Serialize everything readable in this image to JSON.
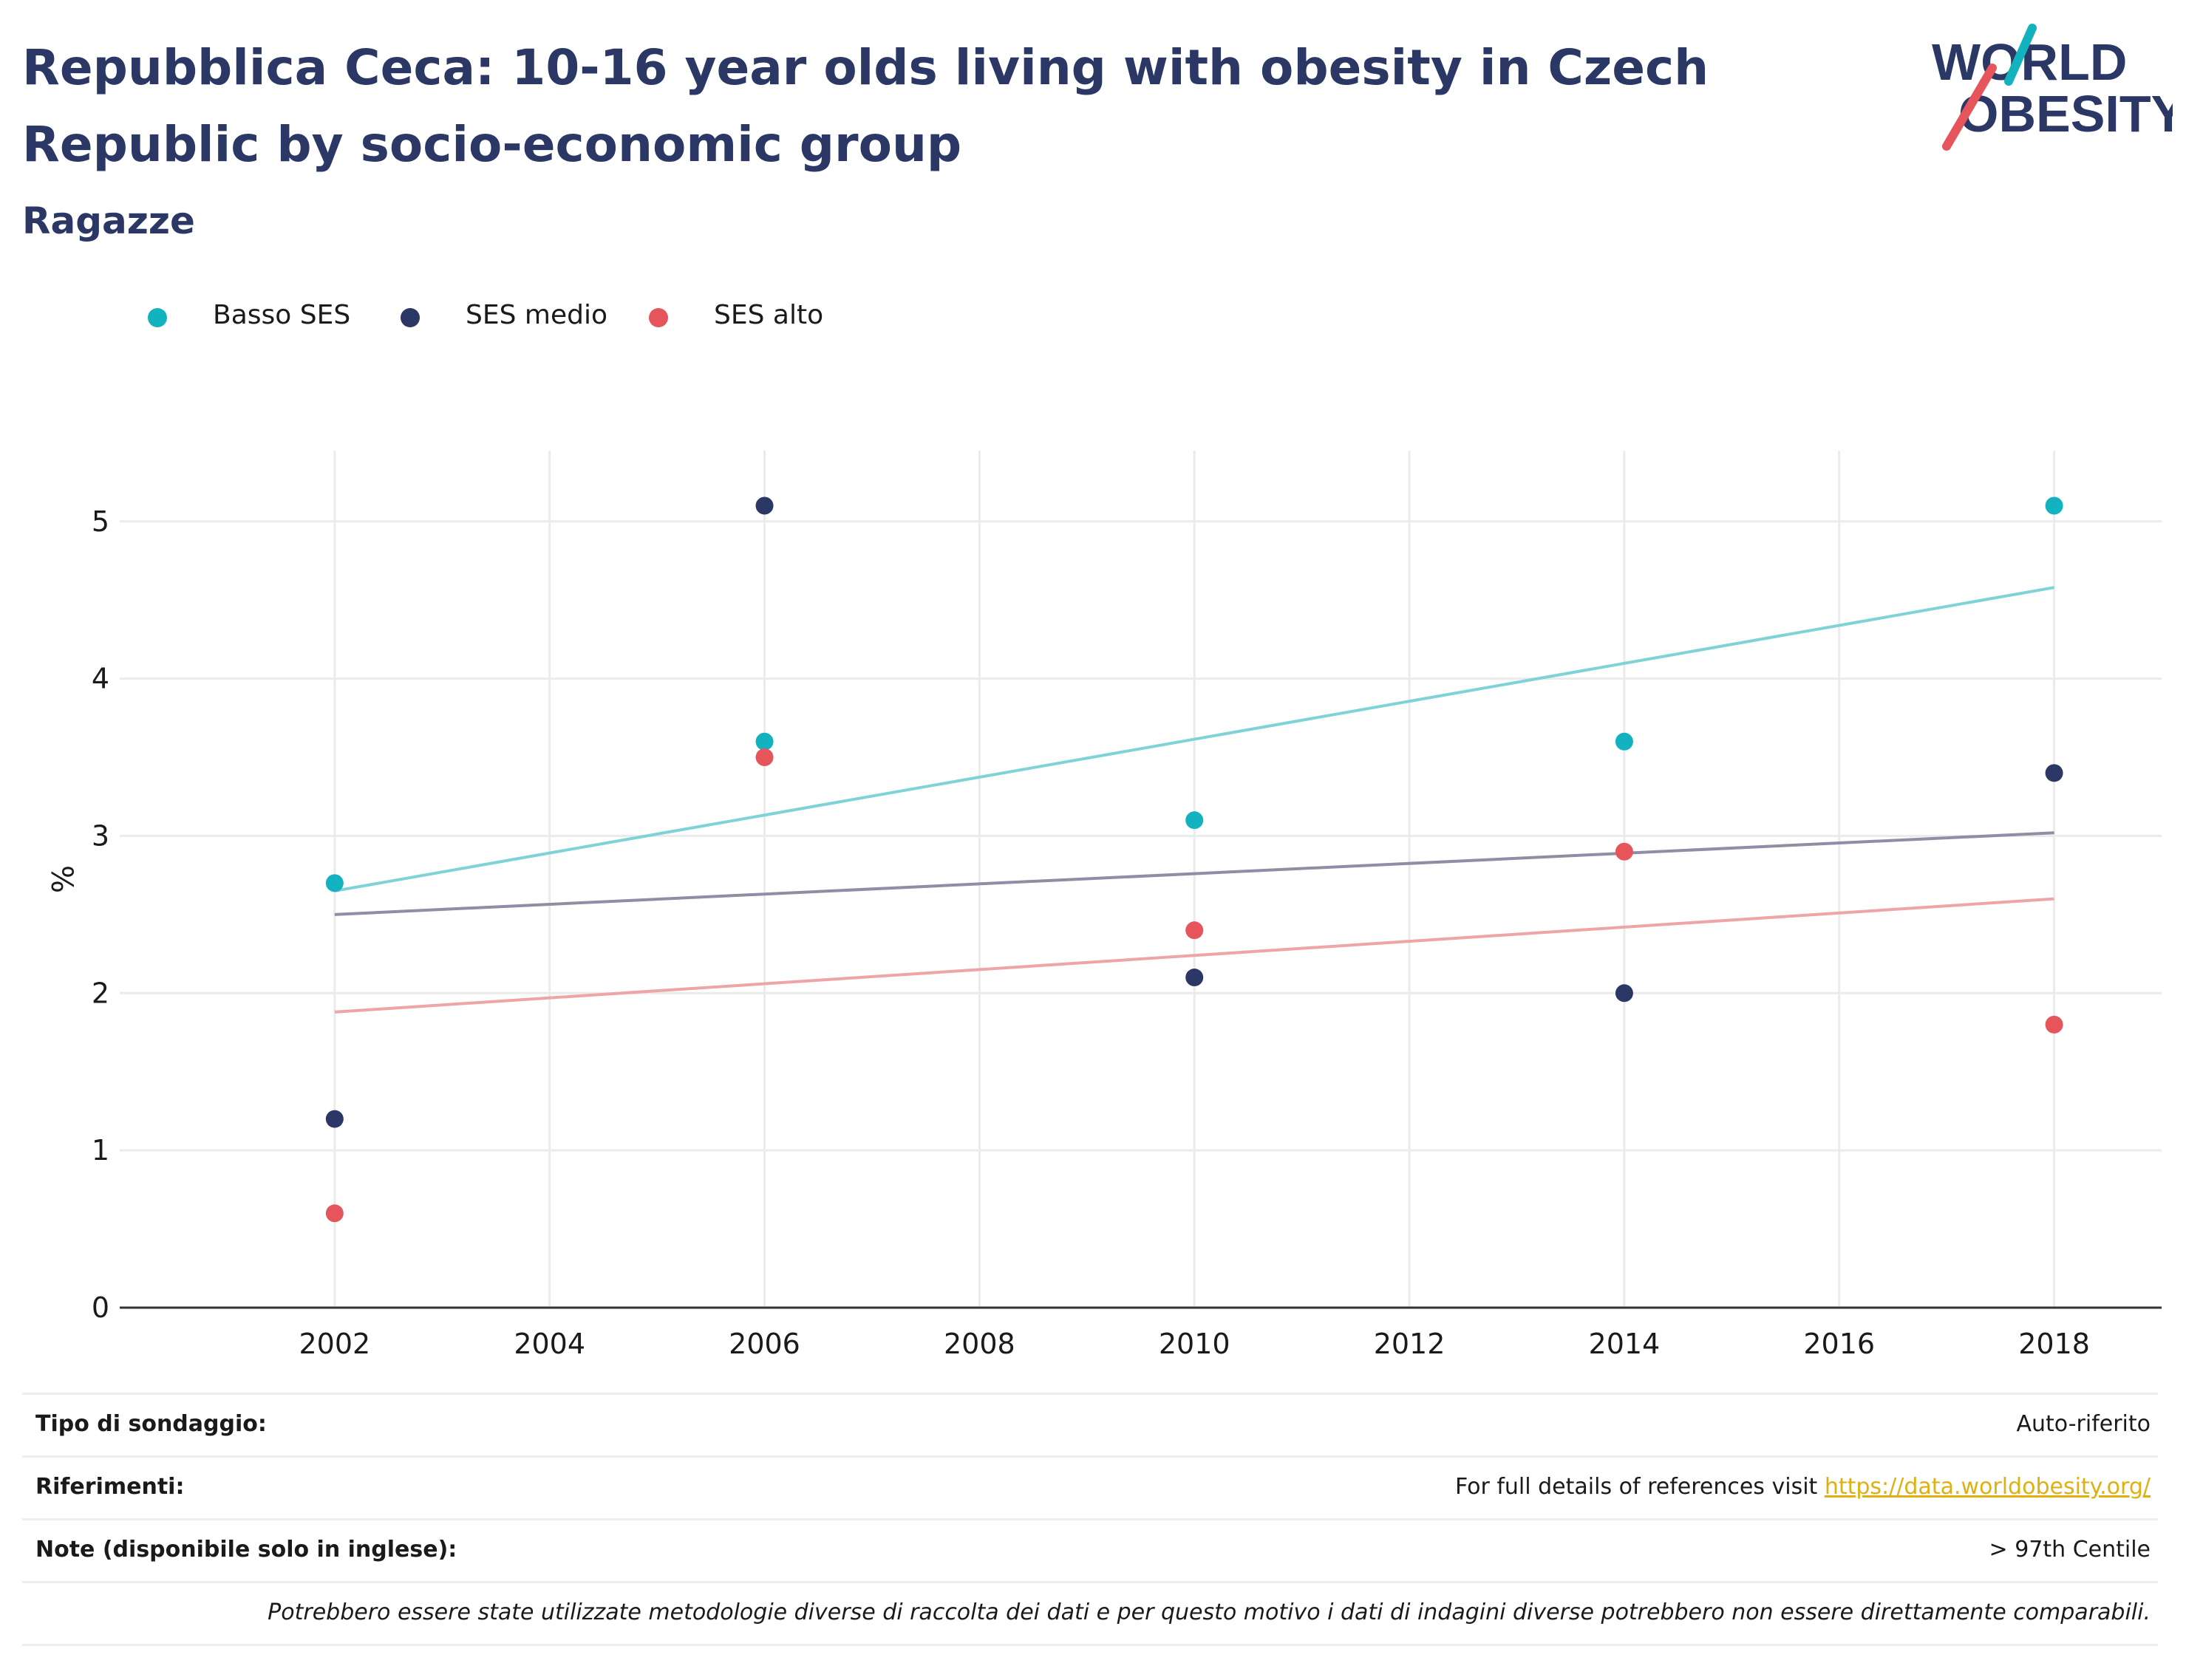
{
  "header": {
    "title": "Repubblica Ceca: 10-16 year olds living with obesity in Czech Republic by socio-economic group",
    "subtitle": "Ragazze"
  },
  "logo": {
    "line1": "WORLD",
    "line2": "OBESITY"
  },
  "colors": {
    "title": "#2b3764",
    "basso": "#12b3be",
    "medio": "#2b3764",
    "alto": "#e5555b",
    "link": "#e0b012"
  },
  "chart_data": {
    "type": "scatter",
    "title": "Repubblica Ceca: 10-16 year olds living with obesity in Czech Republic by socio-economic group",
    "subtitle": "Ragazze",
    "xlabel": "",
    "ylabel": "%",
    "xlim": [
      2000,
      2019
    ],
    "ylim": [
      0,
      5.45
    ],
    "xticks": [
      2002,
      2004,
      2006,
      2008,
      2010,
      2012,
      2014,
      2016,
      2018
    ],
    "yticks": [
      0,
      1,
      2,
      3,
      4,
      5
    ],
    "grid": true,
    "legend_position": "top-left",
    "series": [
      {
        "name": "Basso SES",
        "color": "#12b3be",
        "trend_color": "#7ed3d8",
        "x": [
          2002,
          2006,
          2010,
          2014,
          2018
        ],
        "y": [
          2.7,
          3.6,
          3.1,
          3.6,
          5.1
        ],
        "trend": [
          [
            2002,
            2.65
          ],
          [
            2018,
            4.58
          ]
        ]
      },
      {
        "name": "SES medio",
        "color": "#2b3764",
        "trend_color": "#8e8ea4",
        "x": [
          2002,
          2006,
          2010,
          2014,
          2018
        ],
        "y": [
          1.2,
          5.1,
          2.1,
          2.0,
          3.4
        ],
        "trend": [
          [
            2002,
            2.5
          ],
          [
            2018,
            3.02
          ]
        ]
      },
      {
        "name": "SES alto",
        "color": "#e5555b",
        "trend_color": "#efa5a8",
        "x": [
          2002,
          2006,
          2010,
          2014,
          2018
        ],
        "y": [
          0.6,
          3.5,
          2.4,
          2.9,
          1.8
        ],
        "trend": [
          [
            2002,
            1.88
          ],
          [
            2018,
            2.6
          ]
        ]
      }
    ]
  },
  "info": {
    "survey_label": "Tipo di sondaggio:",
    "survey_value": "Auto-riferito",
    "refs_label": "Riferimenti:",
    "refs_text": "For full details of references visit ",
    "refs_link": "https://data.worldobesity.org/",
    "notes_label": "Note (disponibile solo in inglese):",
    "notes_value": "> 97th Centile",
    "disclaimer": "Potrebbero essere state utilizzate metodologie diverse di raccolta dei dati e per questo motivo i dati di indagini diverse potrebbero non essere direttamente comparabili."
  }
}
